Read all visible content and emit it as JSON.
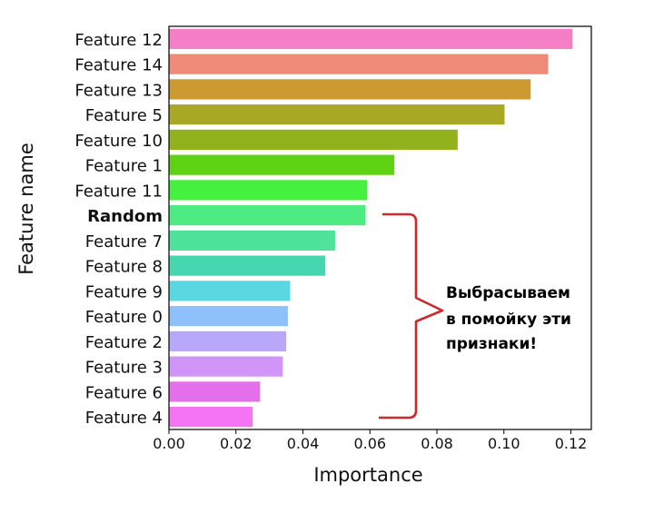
{
  "chart_data": {
    "type": "bar",
    "orientation": "horizontal",
    "xlabel": "Importance",
    "ylabel": "Feature name",
    "xlim": [
      0.0,
      0.125
    ],
    "xticks": [
      "0.00",
      "0.02",
      "0.04",
      "0.06",
      "0.08",
      "0.10",
      "0.12"
    ],
    "xtick_values": [
      0.0,
      0.02,
      0.04,
      0.06,
      0.08,
      0.1,
      0.12
    ],
    "grid": false,
    "categories": [
      "Feature 12",
      "Feature 14",
      "Feature 13",
      "Feature 5",
      "Feature 10",
      "Feature 1",
      "Feature 11",
      "Random",
      "Feature 7",
      "Feature 8",
      "Feature 9",
      "Feature 0",
      "Feature 2",
      "Feature 3",
      "Feature 6",
      "Feature 4"
    ],
    "values": [
      0.1205,
      0.1132,
      0.108,
      0.1002,
      0.0862,
      0.0673,
      0.0592,
      0.0587,
      0.0496,
      0.0467,
      0.0362,
      0.0355,
      0.035,
      0.034,
      0.0272,
      0.025
    ],
    "colors": [
      "#f57fc6",
      "#f08a78",
      "#cc9a30",
      "#a8a826",
      "#92b21d",
      "#5fd313",
      "#45f03f",
      "#4deb81",
      "#4fe29a",
      "#46d6b0",
      "#59d8e2",
      "#8ec0fb",
      "#b9a8fa",
      "#d095f6",
      "#e46fea",
      "#f474f5"
    ],
    "bold_category": "Random",
    "annotation": {
      "lines": [
        "Выбрасываем",
        "в помойку эти",
        "признаки!"
      ],
      "bracket_color": "#cc2a2a"
    }
  }
}
